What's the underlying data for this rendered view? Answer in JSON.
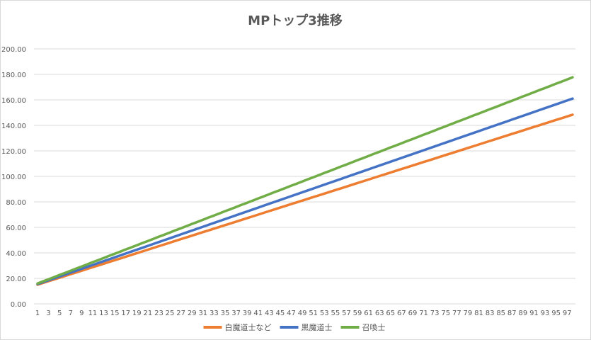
{
  "chart_data": {
    "type": "line",
    "title": "MPトップ3推移",
    "xlabel": "",
    "ylabel": "",
    "ylim": [
      0,
      200
    ],
    "ytick_step": 20,
    "ytick_labels": [
      "0.00",
      "20.00",
      "40.00",
      "60.00",
      "80.00",
      "100.00",
      "120.00",
      "140.00",
      "160.00",
      "180.00",
      "200.00"
    ],
    "grid": true,
    "legend_position": "bottom",
    "x": [
      1,
      2,
      3,
      4,
      5,
      6,
      7,
      8,
      9,
      10,
      11,
      12,
      13,
      14,
      15,
      16,
      17,
      18,
      19,
      20,
      21,
      22,
      23,
      24,
      25,
      26,
      27,
      28,
      29,
      30,
      31,
      32,
      33,
      34,
      35,
      36,
      37,
      38,
      39,
      40,
      41,
      42,
      43,
      44,
      45,
      46,
      47,
      48,
      49,
      50,
      51,
      52,
      53,
      54,
      55,
      56,
      57,
      58,
      59,
      60,
      61,
      62,
      63,
      64,
      65,
      66,
      67,
      68,
      69,
      70,
      71,
      72,
      73,
      74,
      75,
      76,
      77,
      78,
      79,
      80,
      81,
      82,
      83,
      84,
      85,
      86,
      87,
      88,
      89,
      90,
      91,
      92,
      93,
      94,
      95,
      96,
      97,
      98
    ],
    "xtick_labels": [
      "1",
      "3",
      "5",
      "7",
      "9",
      "11",
      "13",
      "15",
      "17",
      "19",
      "21",
      "23",
      "25",
      "27",
      "29",
      "31",
      "33",
      "35",
      "37",
      "39",
      "41",
      "43",
      "45",
      "47",
      "49",
      "51",
      "53",
      "55",
      "57",
      "59",
      "61",
      "63",
      "65",
      "67",
      "69",
      "71",
      "73",
      "75",
      "77",
      "79",
      "81",
      "83",
      "85",
      "87",
      "89",
      "91",
      "93",
      "95",
      "97"
    ],
    "series": [
      {
        "name": "白魔道士など",
        "color": "#ed7d31",
        "values": [
          15.0,
          16.4,
          17.8,
          19.1,
          20.5,
          21.9,
          23.3,
          24.6,
          26.0,
          27.4,
          28.8,
          30.1,
          31.5,
          32.9,
          34.3,
          35.6,
          37.0,
          38.4,
          39.8,
          41.1,
          42.5,
          43.9,
          45.3,
          46.6,
          48.0,
          49.4,
          50.8,
          52.1,
          53.5,
          54.9,
          56.3,
          57.6,
          59.0,
          60.4,
          61.8,
          63.1,
          64.5,
          65.9,
          67.3,
          68.6,
          70.0,
          71.4,
          72.8,
          74.1,
          75.5,
          76.9,
          78.3,
          79.6,
          81.0,
          82.4,
          83.8,
          85.1,
          86.5,
          87.9,
          89.3,
          90.6,
          92.0,
          93.4,
          94.8,
          96.1,
          97.5,
          98.9,
          100.3,
          101.6,
          103.0,
          104.4,
          105.8,
          107.1,
          108.5,
          109.9,
          111.3,
          112.6,
          114.0,
          115.4,
          116.8,
          118.1,
          119.5,
          120.9,
          122.3,
          123.6,
          125.0,
          126.4,
          127.8,
          129.1,
          130.5,
          131.9,
          133.3,
          134.6,
          136.0,
          137.4,
          138.8,
          140.1,
          141.5,
          142.9,
          144.3,
          145.6,
          147.0,
          148.4
        ]
      },
      {
        "name": "黒魔道士",
        "color": "#4472c4",
        "values": [
          15.5,
          17,
          18.5,
          20,
          21.5,
          23,
          24.5,
          26,
          27.5,
          29,
          30.5,
          32,
          33.5,
          35,
          36.5,
          38,
          39.5,
          41,
          42.5,
          44,
          45.5,
          47,
          48.5,
          50,
          51.5,
          53,
          54.5,
          56,
          57.5,
          59,
          60.5,
          62,
          63.5,
          65,
          66.5,
          68,
          69.5,
          71,
          72.5,
          74,
          75.5,
          77,
          78.5,
          80,
          81.5,
          83,
          84.5,
          86,
          87.5,
          89,
          90.5,
          92,
          93.5,
          95,
          96.5,
          98,
          99.5,
          101,
          102.5,
          104,
          105.5,
          107,
          108.5,
          110,
          111.5,
          113,
          114.5,
          116,
          117.5,
          119,
          120.5,
          122,
          123.5,
          125,
          126.5,
          128,
          129.5,
          131,
          132.5,
          134,
          135.5,
          137,
          138.5,
          140,
          141.5,
          143,
          144.5,
          146,
          147.5,
          149,
          150.5,
          152,
          153.5,
          155,
          156.5,
          158,
          159.5,
          161
        ]
      },
      {
        "name": "召喚士",
        "color": "#70ad47",
        "values": [
          16.0,
          17.7,
          19.3,
          21.0,
          22.7,
          24.3,
          26.0,
          27.7,
          29.3,
          31.0,
          32.7,
          34.3,
          36.0,
          37.7,
          39.3,
          41.0,
          42.7,
          44.3,
          46.0,
          47.7,
          49.3,
          51.0,
          52.7,
          54.3,
          56.0,
          57.7,
          59.3,
          61.0,
          62.7,
          64.3,
          66.0,
          67.7,
          69.3,
          71.0,
          72.7,
          74.3,
          76.0,
          77.7,
          79.3,
          81.0,
          82.7,
          84.3,
          86.0,
          87.7,
          89.3,
          91.0,
          92.7,
          94.3,
          96.0,
          97.7,
          99.3,
          101.0,
          102.7,
          104.3,
          106.0,
          107.7,
          109.3,
          111.0,
          112.7,
          114.3,
          116.0,
          117.7,
          119.3,
          121.0,
          122.7,
          124.3,
          126.0,
          127.7,
          129.3,
          131.0,
          132.7,
          134.3,
          136.0,
          137.7,
          139.3,
          141.0,
          142.7,
          144.3,
          146.0,
          147.7,
          149.3,
          151.0,
          152.7,
          154.3,
          156.0,
          157.7,
          159.3,
          161.0,
          162.7,
          164.3,
          166.0,
          167.7,
          169.3,
          171.0,
          172.7,
          174.3,
          176.0,
          177.7
        ]
      }
    ]
  }
}
